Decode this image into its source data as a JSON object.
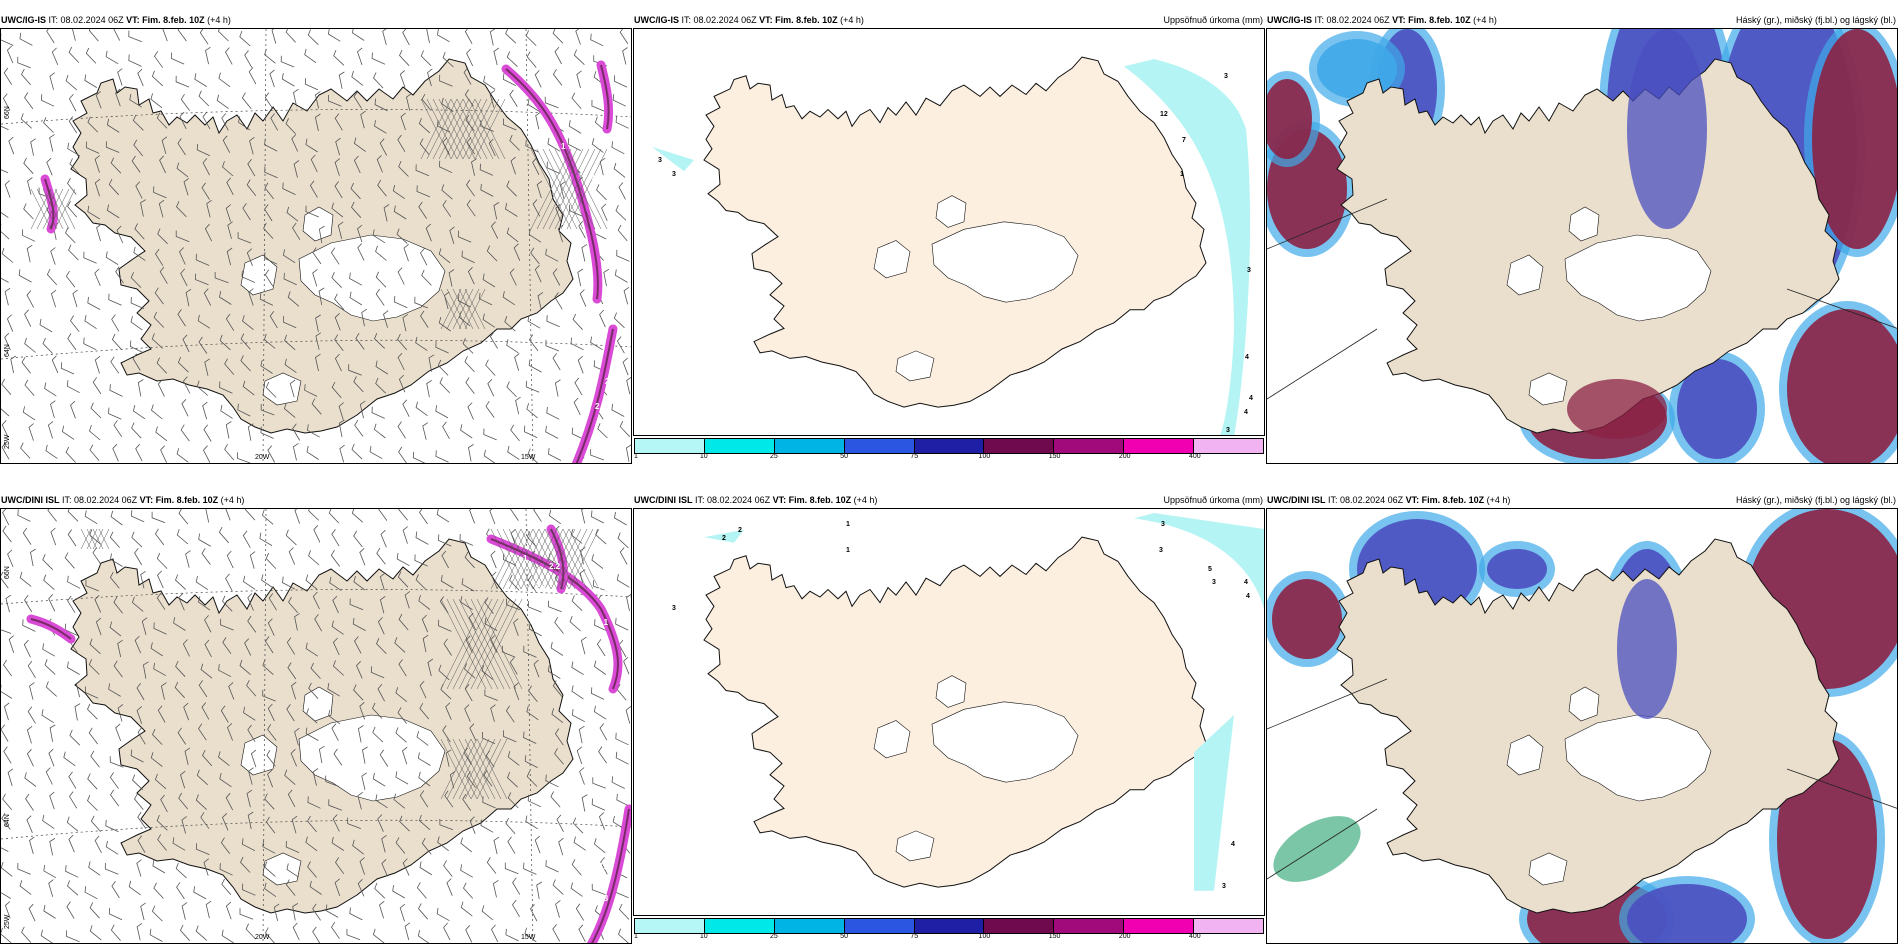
{
  "colors": {
    "land_wind": "#eadfcd",
    "land_precip": "#fcefe0",
    "glacier": "#ffffff",
    "wind_barb": "#555555",
    "coast": "#111111",
    "magenta": "#d94bd6",
    "magenta_dark": "#7a2a66",
    "precip_cyan": "#b5f4f4",
    "cloud_high": "#4b4fc0",
    "cloud_high_light": "#3fa9e8",
    "cloud_mid": "#8b2244",
    "cloud_mid_edge": "#e07d7a",
    "cloud_low": "#22a06b"
  },
  "colorbar": {
    "colors": [
      "#b5f7f7",
      "#00e8e8",
      "#00b4e6",
      "#2a56e2",
      "#1f1fa6",
      "#6e0a4d",
      "#a00a7a",
      "#f000b0",
      "#f2b3f2"
    ],
    "labels": [
      "1",
      "10",
      "25",
      "50",
      "75",
      "100",
      "150",
      "200",
      "400"
    ]
  },
  "rows": [
    {
      "model": "UWC/IG-IS",
      "it_label": "IT:",
      "it_value": "08.02.2024 06Z",
      "vt_label": "VT: Fim. 8.feb. 10Z",
      "lead": "(+4 h)",
      "wind_grid_labels": [
        "66N",
        "64N",
        "25W",
        "20W",
        "15W"
      ],
      "precip_title": "Uppsöfnuð úrkoma (mm)",
      "precip_values": [
        "3",
        "3",
        "12",
        "7",
        "1",
        "3",
        "3",
        "4",
        "4",
        "4",
        "3"
      ],
      "precip_bands": [
        "#b5f4f4"
      ],
      "cloud_title": "Háský (gr.), miðský (fj.bl.) og lágský (bl.)",
      "wind_labels": [
        "1",
        "1",
        "1",
        "1",
        "2.4",
        "1.5",
        "1",
        "2.4"
      ]
    },
    {
      "model": "UWC/DINI ISL",
      "it_label": "IT:",
      "it_value": "08.02.2024 06Z",
      "vt_label": "VT: Fim. 8.feb. 10Z",
      "lead": "(+4 h)",
      "wind_grid_labels": [
        "66N",
        "64N",
        "25W",
        "20W",
        "15W"
      ],
      "precip_title": "Uppsöfnuð úrkoma (mm)",
      "precip_values": [
        "2",
        "2",
        "1",
        "1",
        "3",
        "3",
        "3",
        "5",
        "4",
        "4",
        "3",
        "4",
        "3"
      ],
      "precip_bands": [
        "#b5f4f4"
      ],
      "cloud_title": "Háský (gr.), miðský (fj.bl.) og lágský (bl.)",
      "wind_labels": [
        "1",
        "2.1",
        "2.2",
        "2.1",
        "2.1",
        "1.8",
        "1.4",
        "3"
      ]
    }
  ]
}
